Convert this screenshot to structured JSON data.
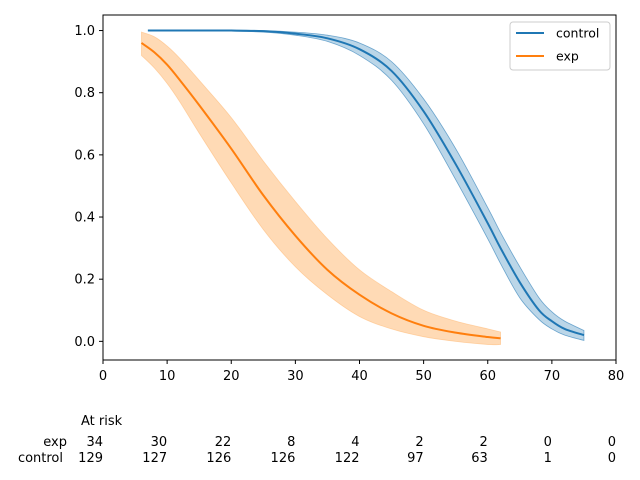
{
  "chart_data": {
    "type": "line",
    "title": "",
    "xlabel": "",
    "ylabel": "",
    "xlim": [
      0,
      80
    ],
    "ylim": [
      -0.06,
      1.05
    ],
    "x_ticks": [
      0,
      10,
      20,
      30,
      40,
      50,
      60,
      70,
      80
    ],
    "x_tick_labels": [
      "0",
      "10",
      "20",
      "30",
      "40",
      "50",
      "60",
      "70",
      "80"
    ],
    "y_ticks": [
      0.0,
      0.2,
      0.4,
      0.6,
      0.8,
      1.0
    ],
    "y_tick_labels": [
      "0.0",
      "0.2",
      "0.4",
      "0.6",
      "0.8",
      "1.0"
    ],
    "grid": false,
    "legend": {
      "position": "top-right",
      "entries": [
        "control",
        "exp"
      ]
    },
    "series": [
      {
        "name": "control",
        "color": "#1f77b4",
        "band_color": "#1f77b4",
        "x": [
          7,
          10,
          15,
          20,
          25,
          30,
          35,
          40,
          45,
          50,
          55,
          60,
          62,
          65,
          68,
          70,
          72,
          75
        ],
        "y": [
          1.0,
          1.0,
          1.0,
          1.0,
          0.998,
          0.99,
          0.975,
          0.94,
          0.87,
          0.74,
          0.57,
          0.38,
          0.3,
          0.19,
          0.1,
          0.065,
          0.04,
          0.02
        ],
        "lower": [
          1.0,
          1.0,
          1.0,
          0.998,
          0.995,
          0.985,
          0.965,
          0.92,
          0.84,
          0.7,
          0.52,
          0.33,
          0.25,
          0.14,
          0.07,
          0.04,
          0.02,
          0.003
        ],
        "upper": [
          1.0,
          1.0,
          1.0,
          1.0,
          1.0,
          0.995,
          0.985,
          0.96,
          0.9,
          0.78,
          0.62,
          0.43,
          0.35,
          0.24,
          0.14,
          0.095,
          0.065,
          0.035
        ]
      },
      {
        "name": "exp",
        "color": "#ff7f0e",
        "band_color": "#ffbb78",
        "x": [
          6,
          8,
          10,
          12,
          15,
          20,
          25,
          30,
          35,
          40,
          45,
          50,
          55,
          60,
          62
        ],
        "y": [
          0.96,
          0.93,
          0.89,
          0.84,
          0.76,
          0.62,
          0.47,
          0.34,
          0.23,
          0.15,
          0.09,
          0.05,
          0.028,
          0.014,
          0.01
        ],
        "lower": [
          0.92,
          0.88,
          0.83,
          0.77,
          0.67,
          0.51,
          0.36,
          0.24,
          0.15,
          0.08,
          0.04,
          0.015,
          0.0,
          -0.01,
          -0.01
        ],
        "upper": [
          0.995,
          0.98,
          0.95,
          0.91,
          0.84,
          0.72,
          0.58,
          0.45,
          0.33,
          0.23,
          0.16,
          0.1,
          0.065,
          0.04,
          0.03
        ]
      }
    ],
    "at_risk": {
      "header": "At risk",
      "times": [
        0,
        10,
        20,
        30,
        40,
        50,
        60,
        70,
        80
      ],
      "rows": [
        {
          "label": "exp",
          "counts": [
            "34",
            "30",
            "22",
            "8",
            "4",
            "2",
            "2",
            "0",
            "0"
          ]
        },
        {
          "label": "control",
          "counts": [
            "129",
            "127",
            "126",
            "126",
            "122",
            "97",
            "63",
            "1",
            "0"
          ]
        }
      ]
    }
  }
}
